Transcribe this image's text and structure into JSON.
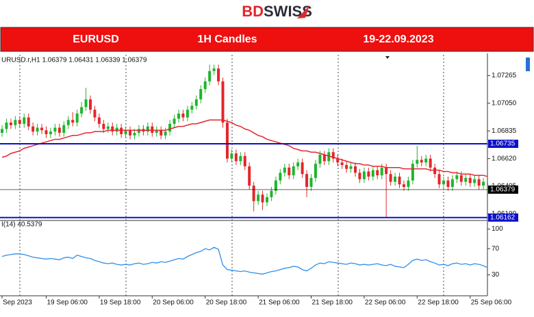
{
  "header": {
    "logo_bd": "BD",
    "logo_swiss": "SWISS",
    "pair": "EURUSD",
    "timeframe": "1H Candles",
    "dates": "19-22.09.2023"
  },
  "chart_data": [
    {
      "type": "candlestick",
      "title": "URUSD.r,H1  1.06379 1.06431 1.06339 1.06379",
      "up_color": "#1fb52c",
      "down_color": "#e3262b",
      "ylim": [
        1.0615,
        1.074
      ],
      "yticks": [
        1.07265,
        {
          "value": 1.0705,
          "label": "1.07050"
        },
        1.06835,
        {
          "value": 1.0662,
          "label": "1.06620"
        },
        1.06405,
        {
          "value": 1.0619,
          "label": "1.06190"
        }
      ],
      "categories": [
        "Sep 2023",
        null,
        null,
        null,
        null,
        null,
        null,
        null,
        null,
        null,
        "19 Sep 06:00",
        null,
        null,
        null,
        null,
        null,
        null,
        null,
        null,
        null,
        null,
        null,
        "19 Sep 18:00",
        null,
        null,
        null,
        null,
        null,
        null,
        null,
        null,
        null,
        null,
        null,
        "20 Sep 06:00",
        null,
        null,
        null,
        null,
        null,
        null,
        null,
        null,
        null,
        null,
        null,
        "20 Sep 18:00",
        null,
        null,
        null,
        null,
        null,
        null,
        null,
        null,
        null,
        null,
        null,
        "21 Sep 06:00",
        null,
        null,
        null,
        null,
        null,
        null,
        null,
        null,
        null,
        null,
        null,
        "21 Sep 18:00",
        null,
        null,
        null,
        null,
        null,
        null,
        null,
        null,
        null,
        null,
        null,
        "22 Sep 06:00",
        null,
        null,
        null,
        null,
        null,
        null,
        null,
        null,
        null,
        null,
        null,
        "22 Sep 18:00",
        null,
        null,
        null,
        null,
        null,
        null,
        null,
        null,
        null,
        null,
        null,
        "25 Sep 06:00",
        null,
        null,
        null,
        null
      ],
      "open": [
        1.0682,
        1.0685,
        1.069,
        1.0688,
        1.0692,
        1.0689,
        1.0694,
        1.0687,
        1.0683,
        1.0686,
        1.0684,
        1.0681,
        1.0683,
        1.0686,
        1.0682,
        1.0688,
        1.0692,
        1.069,
        1.0697,
        1.0702,
        1.0708,
        1.07,
        1.0694,
        1.0689,
        1.0685,
        1.0687,
        1.0683,
        1.0686,
        1.0681,
        1.0684,
        1.068,
        1.0682,
        1.0685,
        1.0683,
        1.0687,
        1.0682,
        1.0684,
        1.068,
        1.0683,
        1.0689,
        1.0693,
        1.0697,
        1.0694,
        1.07,
        1.0703,
        1.0708,
        1.0716,
        1.0722,
        1.073,
        1.0732,
        1.0722,
        1.069,
        1.0662,
        1.0666,
        1.066,
        1.0664,
        1.0656,
        1.0641,
        1.0629,
        1.0634,
        1.0628,
        1.0632,
        1.0637,
        1.0645,
        1.0651,
        1.0655,
        1.0649,
        1.0656,
        1.0659,
        1.065,
        1.064,
        1.0647,
        1.0658,
        1.0665,
        1.066,
        1.0667,
        1.0662,
        1.0659,
        1.0657,
        1.0654,
        1.0656,
        1.0651,
        1.0646,
        1.0652,
        1.0648,
        1.0653,
        1.0649,
        1.0655,
        1.065,
        1.0644,
        1.0648,
        1.0642,
        1.064,
        1.0645,
        1.0658,
        1.0661,
        1.0659,
        1.0662,
        1.0655,
        1.065,
        1.0642,
        1.0645,
        1.064,
        1.0646,
        1.0649,
        1.0644,
        1.0647,
        1.0643,
        1.0646,
        1.0641,
        1.06379
      ],
      "high": [
        1.0688,
        1.0693,
        1.0693,
        1.0695,
        1.0695,
        1.0697,
        1.0697,
        1.069,
        1.0689,
        1.0689,
        1.0687,
        1.0686,
        1.0689,
        1.0689,
        1.0691,
        1.0695,
        1.0698,
        1.07,
        1.0706,
        1.0717,
        1.0711,
        1.0703,
        1.0697,
        1.0692,
        1.069,
        1.069,
        1.0689,
        1.0689,
        1.0687,
        1.0687,
        1.0685,
        1.0688,
        1.0688,
        1.069,
        1.069,
        1.0687,
        1.0687,
        1.0686,
        1.0692,
        1.0696,
        1.07,
        1.07,
        1.0703,
        1.0706,
        1.0711,
        1.0719,
        1.0725,
        1.0735,
        1.0735,
        1.0735,
        1.0725,
        1.0693,
        1.0669,
        1.0669,
        1.0667,
        1.0667,
        1.0659,
        1.0644,
        1.0637,
        1.0637,
        1.0635,
        1.064,
        1.0648,
        1.0654,
        1.0658,
        1.0658,
        1.0659,
        1.0662,
        1.0662,
        1.0653,
        1.065,
        1.0661,
        1.0668,
        1.0668,
        1.067,
        1.067,
        1.0665,
        1.0662,
        1.066,
        1.0659,
        1.0659,
        1.0654,
        1.0655,
        1.0655,
        1.0656,
        1.0656,
        1.0658,
        1.0658,
        1.0653,
        1.0651,
        1.0651,
        1.0645,
        1.0648,
        1.0661,
        1.0672,
        1.0664,
        1.0665,
        1.0665,
        1.0658,
        1.0653,
        1.0648,
        1.0648,
        1.0649,
        1.0652,
        1.0652,
        1.065,
        1.065,
        1.0649,
        1.0649,
        1.0647,
        1.06431
      ],
      "low": [
        1.0679,
        1.0682,
        1.0685,
        1.0685,
        1.0686,
        1.0686,
        1.0684,
        1.068,
        1.068,
        1.0681,
        1.0678,
        1.0678,
        1.068,
        1.0679,
        1.0679,
        1.0685,
        1.0687,
        1.0687,
        1.0694,
        1.0699,
        1.0697,
        1.0691,
        1.0686,
        1.0682,
        1.0682,
        1.068,
        1.068,
        1.0678,
        1.0678,
        1.0677,
        1.0677,
        1.0679,
        1.068,
        1.068,
        1.0679,
        1.0679,
        1.0677,
        1.0677,
        1.068,
        1.0686,
        1.069,
        1.0691,
        1.0691,
        1.0697,
        1.07,
        1.0705,
        1.0713,
        1.0719,
        1.0727,
        1.0719,
        1.0686,
        1.0659,
        1.0659,
        1.0657,
        1.0657,
        1.0653,
        1.0638,
        1.0621,
        1.0626,
        1.0622,
        1.0625,
        1.0629,
        1.0634,
        1.0642,
        1.0648,
        1.0646,
        1.0646,
        1.0653,
        1.0647,
        1.0632,
        1.0637,
        1.0644,
        1.0655,
        1.0657,
        1.0657,
        1.0659,
        1.0656,
        1.0654,
        1.0651,
        1.0651,
        1.0648,
        1.0643,
        1.0643,
        1.0645,
        1.0645,
        1.0646,
        1.0646,
        1.0616,
        1.0641,
        1.0641,
        1.0639,
        1.0637,
        1.0637,
        1.0642,
        1.0655,
        1.0656,
        1.0656,
        1.0652,
        1.0647,
        1.0639,
        1.0639,
        1.0637,
        1.0637,
        1.0643,
        1.0641,
        1.0641,
        1.064,
        1.064,
        1.0638,
        1.0638,
        1.06339
      ],
      "close": [
        1.0685,
        1.069,
        1.0688,
        1.0692,
        1.0689,
        1.0694,
        1.0687,
        1.0683,
        1.0686,
        1.0684,
        1.0681,
        1.0683,
        1.0686,
        1.0682,
        1.0688,
        1.0692,
        1.069,
        1.0697,
        1.0702,
        1.0708,
        1.07,
        1.0694,
        1.0689,
        1.0685,
        1.0687,
        1.0683,
        1.0686,
        1.0681,
        1.0684,
        1.068,
        1.0682,
        1.0685,
        1.0683,
        1.0687,
        1.0682,
        1.0684,
        1.068,
        1.0683,
        1.0689,
        1.0693,
        1.0697,
        1.0694,
        1.07,
        1.0703,
        1.0708,
        1.0716,
        1.0722,
        1.073,
        1.0732,
        1.0722,
        1.069,
        1.0662,
        1.0666,
        1.066,
        1.0664,
        1.0656,
        1.0641,
        1.0629,
        1.0634,
        1.0628,
        1.0632,
        1.0637,
        1.0645,
        1.0651,
        1.0655,
        1.0649,
        1.0656,
        1.0659,
        1.065,
        1.064,
        1.0647,
        1.0658,
        1.0665,
        1.066,
        1.0667,
        1.0662,
        1.0659,
        1.0657,
        1.0654,
        1.0656,
        1.0651,
        1.0646,
        1.0652,
        1.0648,
        1.0653,
        1.0649,
        1.0655,
        1.065,
        1.0644,
        1.0648,
        1.0642,
        1.064,
        1.0645,
        1.0658,
        1.0661,
        1.0659,
        1.0662,
        1.0655,
        1.065,
        1.0642,
        1.0645,
        1.064,
        1.0646,
        1.0649,
        1.0644,
        1.0647,
        1.0643,
        1.0646,
        1.0641,
        1.0644,
        1.06379
      ],
      "moving_average": {
        "color": "#e3262b",
        "values": [
          1.0663,
          1.0664,
          1.0666,
          1.0667,
          1.0668,
          1.067,
          1.0671,
          1.0672,
          1.0673,
          1.0674,
          1.0675,
          1.0676,
          1.0677,
          1.0677,
          1.0678,
          1.0679,
          1.068,
          1.068,
          1.0681,
          1.0682,
          1.0682,
          1.0683,
          1.0683,
          1.0683,
          1.0684,
          1.0684,
          1.0684,
          1.0684,
          1.0684,
          1.0684,
          1.0684,
          1.0684,
          1.0684,
          1.0684,
          1.0684,
          1.0684,
          1.0684,
          1.0684,
          1.0685,
          1.0686,
          1.0687,
          1.0687,
          1.0688,
          1.0689,
          1.0689,
          1.069,
          1.0691,
          1.0692,
          1.0692,
          1.0692,
          1.0692,
          1.0691,
          1.069,
          1.0688,
          1.0687,
          1.0685,
          1.0684,
          1.0682,
          1.068,
          1.0679,
          1.0677,
          1.0676,
          1.0675,
          1.0674,
          1.0673,
          1.0672,
          1.067,
          1.0669,
          1.0668,
          1.0668,
          1.0667,
          1.0667,
          1.0666,
          1.0665,
          1.0664,
          1.0663,
          1.0662,
          1.0661,
          1.066,
          1.0659,
          1.0658,
          1.0658,
          1.0657,
          1.0657,
          1.0656,
          1.0656,
          1.0656,
          1.0655,
          1.0655,
          1.0655,
          1.0655,
          1.0654,
          1.0654,
          1.0654,
          1.0654,
          1.0654,
          1.0654,
          1.0653,
          1.0653,
          1.0653,
          1.0652,
          1.0652,
          1.0651,
          1.0651,
          1.065,
          1.065,
          1.065,
          1.0649,
          1.0649,
          1.0649,
          1.0648
        ]
      },
      "levels": [
        {
          "value": 1.06735,
          "color": "#0b10c8"
        },
        {
          "value": 1.06162,
          "color": "#0b10c8"
        },
        {
          "value": 1.06379,
          "color": "#000000"
        }
      ]
    },
    {
      "type": "line",
      "title": "I(14) 40.5379",
      "color": "#2f8fe8",
      "ylim": [
        0,
        110
      ],
      "yticks": [
        100,
        70,
        30
      ],
      "values": [
        58,
        60,
        61,
        62,
        62,
        61,
        59,
        57,
        56,
        55,
        54,
        55,
        54,
        53,
        56,
        57,
        55,
        60,
        58,
        56,
        55,
        52,
        50,
        48,
        47,
        48,
        46,
        45,
        46,
        45,
        47,
        48,
        46,
        47,
        49,
        48,
        50,
        49,
        51,
        53,
        55,
        54,
        58,
        61,
        64,
        66,
        70,
        68,
        72,
        69,
        45,
        38,
        37,
        36,
        35,
        36,
        34,
        33,
        32,
        31,
        33,
        35,
        36,
        38,
        40,
        41,
        43,
        42,
        38,
        36,
        40,
        45,
        48,
        47,
        50,
        49,
        48,
        47,
        46,
        48,
        47,
        45,
        46,
        45,
        46,
        47,
        45,
        44,
        46,
        43,
        42,
        41,
        46,
        52,
        54,
        52,
        53,
        50,
        48,
        45,
        46,
        44,
        47,
        48,
        46,
        47,
        45,
        47,
        46,
        44,
        40.5379
      ]
    }
  ]
}
